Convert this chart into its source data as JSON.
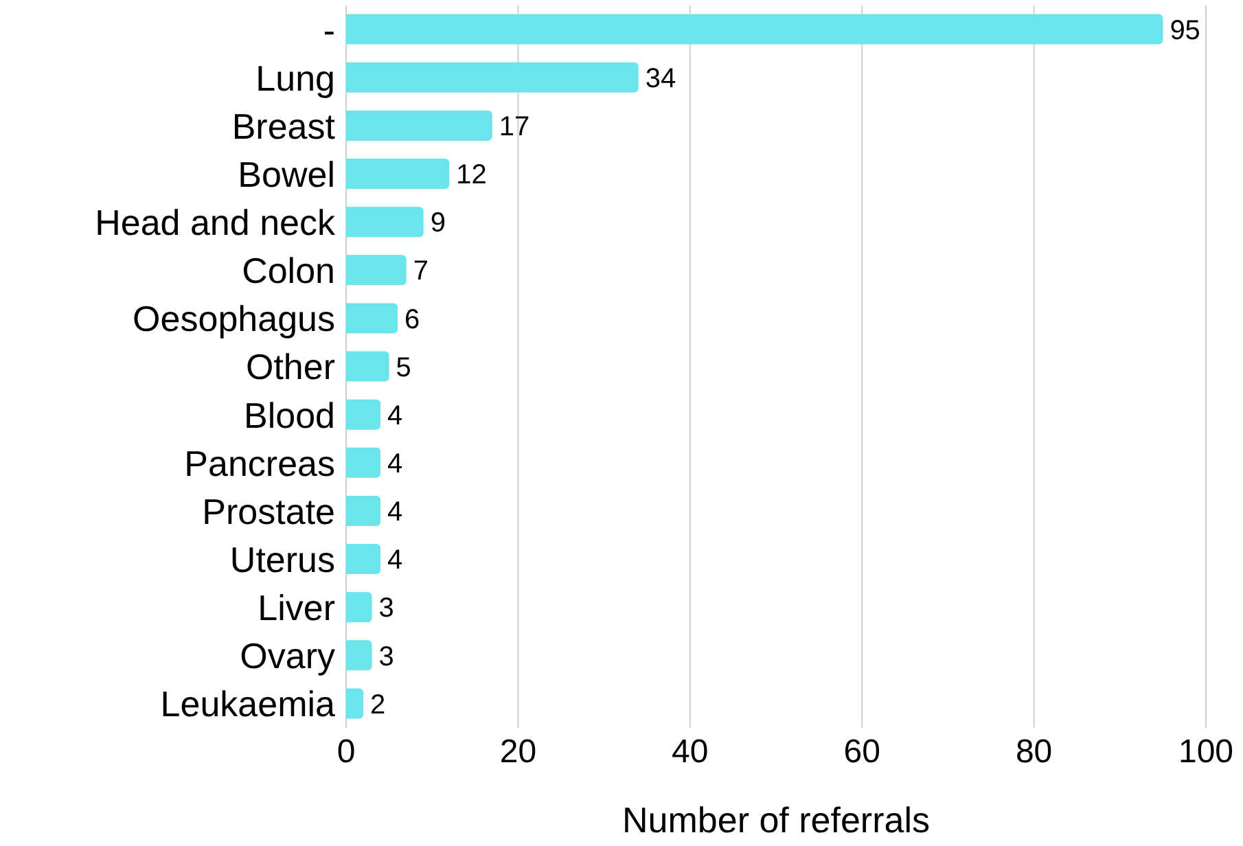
{
  "chart_data": {
    "type": "bar",
    "orientation": "horizontal",
    "xlabel": "Number of referrals",
    "categories": [
      "-",
      "Lung",
      "Breast",
      "Bowel",
      "Head and neck",
      "Colon",
      "Oesophagus",
      "Other",
      "Blood",
      "Pancreas",
      "Prostate",
      "Uterus",
      "Liver",
      "Ovary",
      "Leukaemia"
    ],
    "values": [
      95,
      34,
      17,
      12,
      9,
      7,
      6,
      5,
      4,
      4,
      4,
      4,
      3,
      3,
      2
    ],
    "color": "#6ae6ea",
    "xlim": [
      0,
      100
    ],
    "xticks": [
      0,
      20,
      40,
      60,
      80,
      100
    ],
    "grid": "x",
    "data_labels": true
  }
}
